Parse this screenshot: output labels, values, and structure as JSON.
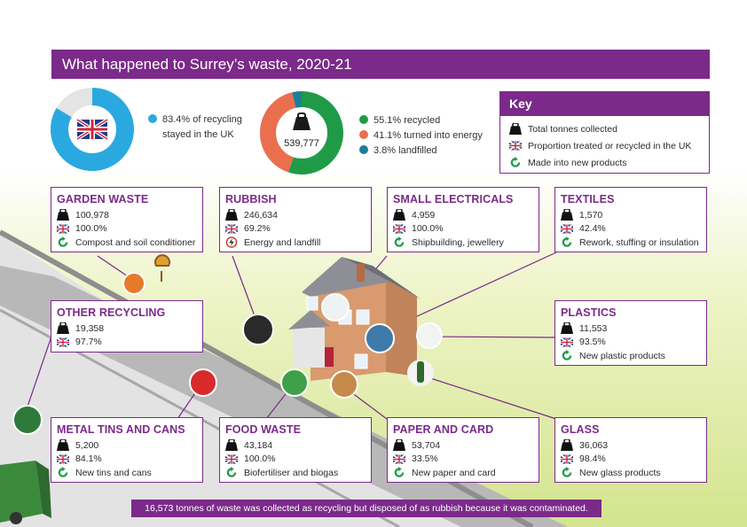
{
  "title": "What happened to Surrey’s waste, 2020-21",
  "uk_share": {
    "value_fraction": 0.834,
    "line1": "83.4% of recycling",
    "line2": "stayed in the UK"
  },
  "total": {
    "tonnes": "539,777",
    "split": [
      {
        "label": "55.1% recycled",
        "fraction": 0.551,
        "color": "#1f9b48"
      },
      {
        "label": "41.1% turned into energy",
        "fraction": 0.411,
        "color": "#ea6f4f"
      },
      {
        "label": "3.8% landfilled",
        "fraction": 0.038,
        "color": "#1c7f97"
      }
    ]
  },
  "key": {
    "heading": "Key",
    "items": [
      {
        "icon": "weight-icon",
        "label": "Total tonnes collected"
      },
      {
        "icon": "uk-flag-icon",
        "label": "Proportion treated or recycled in the UK"
      },
      {
        "icon": "recycle-arrow-icon",
        "label": "Made into new products"
      }
    ]
  },
  "categories": {
    "garden": {
      "name": "GARDEN WASTE",
      "tonnes": "100,978",
      "uk": "100.0%",
      "product": "Compost and soil conditioner"
    },
    "rubbish": {
      "name": "RUBBISH",
      "tonnes": "246,634",
      "uk": "69.2%",
      "product": "Energy and landfill"
    },
    "electricals": {
      "name": "SMALL ELECTRICALS",
      "tonnes": "4,959",
      "uk": "100.0%",
      "product": "Shipbuilding, jewellery"
    },
    "textiles": {
      "name": "TEXTILES",
      "tonnes": "1,570",
      "uk": "42.4%",
      "product": "Rework, stuffing or insulation"
    },
    "other": {
      "name": "OTHER RECYCLING",
      "tonnes": "19,358",
      "uk": "97.7%"
    },
    "plastics": {
      "name": "PLASTICS",
      "tonnes": "11,553",
      "uk": "93.5%",
      "product": "New plastic products"
    },
    "metal": {
      "name": "METAL TINS AND CANS",
      "tonnes": "5,200",
      "uk": "84.1%",
      "product": "New tins and cans"
    },
    "food": {
      "name": "FOOD WASTE",
      "tonnes": "43,184",
      "uk": "100.0%",
      "product": "Biofertiliser and biogas"
    },
    "paper": {
      "name": "PAPER AND CARD",
      "tonnes": "53,704",
      "uk": "33.5%",
      "product": "New paper and card"
    },
    "glass": {
      "name": "GLASS",
      "tonnes": "36,063",
      "uk": "98.4%",
      "product": "New glass products"
    }
  },
  "footer": "16,573 tonnes of waste was collected as recycling but disposed of as rubbish because it was contaminated.",
  "colors": {
    "purple": "#7b2a8a",
    "blue": "#2aa9e0",
    "green": "#1f9b48",
    "orange": "#ea6f4f",
    "teal": "#1c7f97",
    "lime": "#cfe08a"
  }
}
